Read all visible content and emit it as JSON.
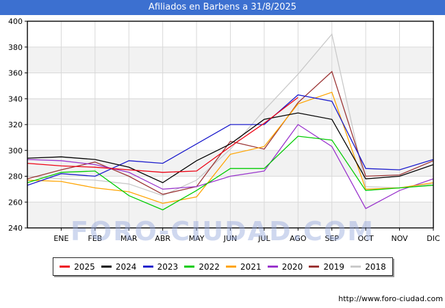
{
  "title": "Afiliados en Barbens a 31/8/2025",
  "watermark": "FORO-CIUDAD.COM",
  "url": "http://www.foro-ciudad.com",
  "colors": {
    "title_bar": "#3c70d0",
    "watermark": "#97a9dc",
    "band": "#f2f2f2",
    "grid": "#d8d8d8",
    "axis": "#000000"
  },
  "chart_data": {
    "type": "line",
    "title": "Afiliados en Barbens a 31/8/2025",
    "xlabel": "",
    "ylabel": "",
    "x_categories": [
      "ENE",
      "FEB",
      "MAR",
      "ABR",
      "MAY",
      "JUN",
      "JUL",
      "AGO",
      "SEP",
      "OCT",
      "NOV",
      "DIC"
    ],
    "ylim": [
      240,
      400
    ],
    "ytick_step": 20,
    "ytick_labels": [
      "400",
      "380",
      "360",
      "340",
      "320",
      "300",
      "280",
      "260",
      "240"
    ],
    "grid": true,
    "legend_position": "bottom",
    "note": "Each polyline starts at the plot left border with the 'start' value; monthly values fall on the month gridlines. 2025 series ends in August (8 monthly values).",
    "series": [
      {
        "name": "2018",
        "color": "#c9c9c9",
        "start": 280,
        "values": [
          278,
          277,
          274,
          265,
          277,
          301,
          331,
          359,
          390,
          272,
          271,
          274
        ]
      },
      {
        "name": "2019",
        "color": "#9b3434",
        "start": 278,
        "values": [
          285,
          291,
          280,
          266,
          272,
          307,
          301,
          337,
          361,
          280,
          281,
          292
        ]
      },
      {
        "name": "2020",
        "color": "#9933cc",
        "start": 293,
        "values": [
          292,
          289,
          283,
          270,
          272,
          280,
          284,
          320,
          303,
          255,
          269,
          278
        ]
      },
      {
        "name": "2021",
        "color": "#ffa400",
        "start": 277,
        "values": [
          276,
          271,
          268,
          259,
          264,
          297,
          303,
          336,
          345,
          270,
          271,
          275
        ]
      },
      {
        "name": "2022",
        "color": "#00cc00",
        "start": 275,
        "values": [
          283,
          284,
          265,
          254,
          269,
          286,
          286,
          311,
          308,
          269,
          271,
          273
        ]
      },
      {
        "name": "2023",
        "color": "#1a1acc",
        "start": 273,
        "values": [
          282,
          280,
          292,
          290,
          305,
          320,
          320,
          343,
          338,
          286,
          285,
          293
        ]
      },
      {
        "name": "2024",
        "color": "#000000",
        "start": 294,
        "values": [
          295,
          293,
          287,
          275,
          292,
          305,
          324,
          329,
          324,
          278,
          280,
          289
        ]
      },
      {
        "name": "2025",
        "color": "#ee0011",
        "start": 290,
        "values": [
          288,
          287,
          285,
          283,
          284,
          303,
          321,
          341
        ]
      }
    ],
    "legend_order": [
      "2025",
      "2024",
      "2023",
      "2022",
      "2021",
      "2020",
      "2019",
      "2018"
    ]
  }
}
